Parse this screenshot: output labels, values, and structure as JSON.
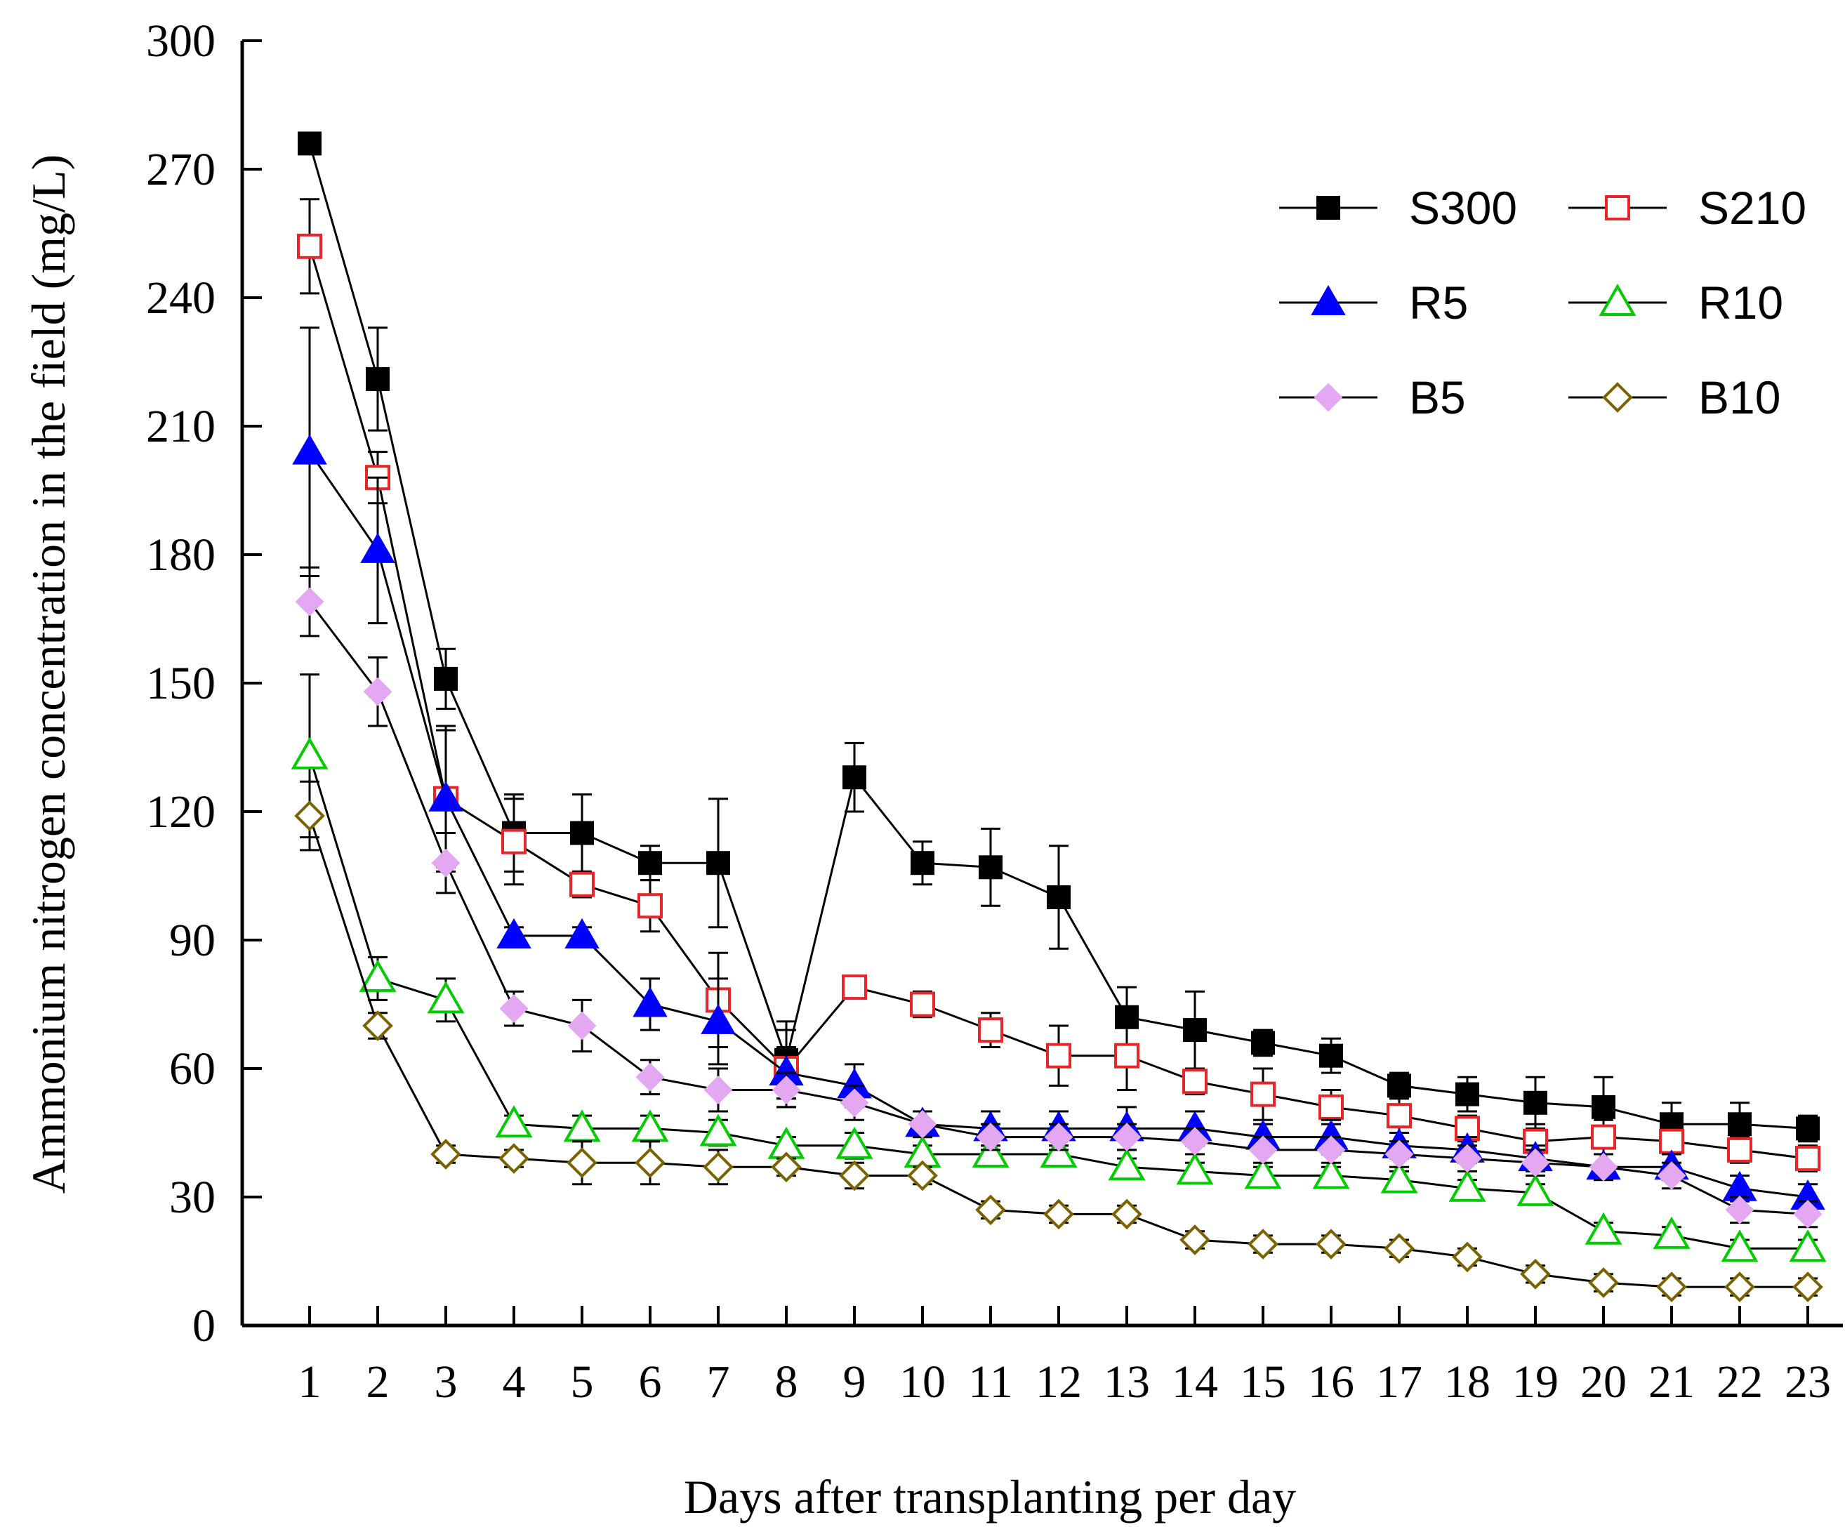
{
  "chart_data": {
    "type": "line",
    "title": "",
    "xlabel": "Days after transplanting per day",
    "ylabel": "Ammonium nitrogen concentration in the field (mg/L)",
    "ylim": [
      0,
      300
    ],
    "yticks": [
      0,
      30,
      60,
      90,
      120,
      150,
      180,
      210,
      240,
      270,
      300
    ],
    "x": [
      1,
      2,
      3,
      4,
      5,
      6,
      7,
      8,
      9,
      10,
      11,
      12,
      13,
      14,
      15,
      16,
      17,
      18,
      19,
      20,
      21,
      22,
      23
    ],
    "legend_position": "top-right",
    "series": [
      {
        "name": "S300",
        "marker": "square",
        "filled": true,
        "color": "#000000",
        "values": [
          276,
          221,
          151,
          115,
          115,
          108,
          108,
          62,
          128,
          108,
          107,
          100,
          72,
          69,
          66,
          63,
          56,
          54,
          52,
          51,
          47,
          47,
          46
        ],
        "errors": [
          0,
          12,
          7,
          9,
          9,
          4,
          15,
          9,
          8,
          5,
          9,
          12,
          7,
          9,
          3,
          4,
          3,
          4,
          6,
          7,
          5,
          5,
          3
        ]
      },
      {
        "name": "S210",
        "marker": "square",
        "filled": false,
        "color": "#e8262a",
        "values": [
          252,
          198,
          123,
          113,
          103,
          98,
          76,
          60,
          79,
          75,
          69,
          63,
          63,
          57,
          54,
          51,
          49,
          46,
          43,
          44,
          43,
          41,
          39
        ],
        "errors": [
          11,
          6,
          16,
          10,
          3,
          6,
          11,
          9,
          2,
          3,
          4,
          7,
          8,
          3,
          6,
          4,
          4,
          3,
          4,
          4,
          3,
          3,
          3
        ]
      },
      {
        "name": "R5",
        "marker": "triangle",
        "filled": true,
        "color": "#0000ff",
        "values": [
          204,
          181,
          123,
          91,
          91,
          75,
          71,
          59,
          56,
          47,
          46,
          46,
          46,
          46,
          44,
          44,
          42,
          41,
          39,
          37,
          37,
          32,
          30
        ],
        "errors": [
          29,
          17,
          17,
          2,
          2,
          6,
          10,
          6,
          5,
          3,
          4,
          4,
          5,
          4,
          3,
          4,
          3,
          3,
          3,
          3,
          3,
          3,
          3
        ]
      },
      {
        "name": "R10",
        "marker": "triangle",
        "filled": false,
        "color": "#00cc00",
        "values": [
          133,
          81,
          76,
          47,
          46,
          46,
          45,
          42,
          42,
          40,
          40,
          40,
          37,
          36,
          35,
          35,
          34,
          32,
          31,
          22,
          21,
          18,
          18
        ],
        "errors": [
          19,
          5,
          5,
          2,
          3,
          3,
          3,
          2,
          3,
          2,
          2,
          2,
          2,
          2,
          2,
          2,
          2,
          2,
          2,
          2,
          2,
          2,
          2
        ]
      },
      {
        "name": "B5",
        "marker": "diamond",
        "filled": true,
        "color": "#e4a8f2",
        "values": [
          169,
          148,
          108,
          74,
          70,
          58,
          55,
          55,
          52,
          47,
          44,
          44,
          44,
          43,
          41,
          41,
          40,
          39,
          38,
          37,
          35,
          27,
          26
        ],
        "errors": [
          8,
          8,
          7,
          4,
          6,
          4,
          5,
          4,
          4,
          3,
          3,
          3,
          3,
          3,
          3,
          3,
          3,
          3,
          3,
          3,
          3,
          3,
          3
        ]
      },
      {
        "name": "B10",
        "marker": "diamond",
        "filled": false,
        "color": "#7a6200",
        "values": [
          119,
          70,
          40,
          39,
          38,
          38,
          37,
          37,
          35,
          35,
          27,
          26,
          26,
          20,
          19,
          19,
          18,
          16,
          12,
          10,
          9,
          9,
          9
        ],
        "errors": [
          8,
          3,
          2,
          2,
          5,
          5,
          4,
          2,
          3,
          2,
          2,
          2,
          2,
          2,
          2,
          2,
          2,
          2,
          2,
          2,
          2,
          2,
          2
        ]
      }
    ]
  }
}
